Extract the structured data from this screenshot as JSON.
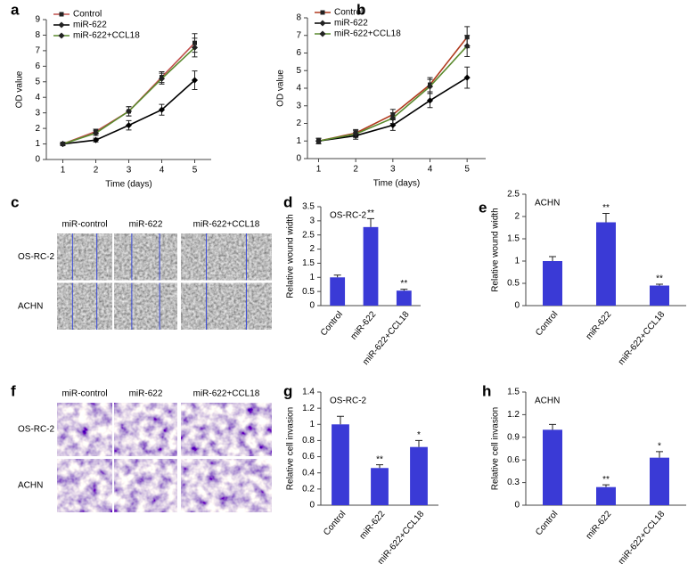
{
  "chart_data": [
    {
      "type": "line",
      "panel": "a",
      "x": [
        1,
        2,
        3,
        4,
        5
      ],
      "xlim": [
        0.5,
        5.5
      ],
      "xticks": [
        1,
        2,
        3,
        4,
        5
      ],
      "ylim": [
        0,
        9
      ],
      "yticks": [
        0,
        1,
        2,
        3,
        4,
        5,
        6,
        7,
        8,
        9
      ],
      "x_label": "Time (days)",
      "y_label": "OD value",
      "legend": "upper left",
      "series": [
        {
          "name": "Control",
          "color": "#c0504d",
          "values": [
            1,
            1.8,
            3.1,
            5.3,
            7.5
          ],
          "errors": [
            0.1,
            0.15,
            0.3,
            0.35,
            0.6
          ]
        },
        {
          "name": "miR-622",
          "color": "#000000",
          "values": [
            1,
            1.25,
            2.2,
            3.2,
            5.1
          ],
          "errors": [
            0.1,
            0.12,
            0.3,
            0.35,
            0.6
          ]
        },
        {
          "name": "miR-622+CCL18",
          "color": "#5a8a2e",
          "values": [
            1,
            1.7,
            3.1,
            5.2,
            7.2
          ],
          "errors": [
            0.1,
            0.15,
            0.3,
            0.35,
            0.6
          ]
        }
      ]
    },
    {
      "type": "line",
      "panel": "b",
      "x": [
        1,
        2,
        3,
        4,
        5
      ],
      "xlim": [
        0.7,
        5.5
      ],
      "xticks": [
        1,
        2,
        3,
        4,
        5
      ],
      "ylim": [
        0,
        8
      ],
      "yticks": [
        0,
        1,
        2,
        3,
        4,
        5,
        6,
        7,
        8
      ],
      "x_label": "Time (days)",
      "y_label": "OD value",
      "legend": "upper left",
      "series": [
        {
          "name": "Control",
          "color": "#b03a1e",
          "values": [
            1,
            1.45,
            2.5,
            4.2,
            6.9
          ],
          "errors": [
            0.15,
            0.2,
            0.3,
            0.4,
            0.6
          ]
        },
        {
          "name": "miR-622",
          "color": "#000000",
          "values": [
            1,
            1.3,
            1.9,
            3.3,
            4.6
          ],
          "errors": [
            0.15,
            0.2,
            0.3,
            0.4,
            0.6
          ]
        },
        {
          "name": "miR-622+CCL18",
          "color": "#5a8a2e",
          "values": [
            1,
            1.4,
            2.3,
            4.1,
            6.4
          ],
          "errors": [
            0.15,
            0.2,
            0.3,
            0.4,
            0.6
          ]
        }
      ]
    },
    {
      "type": "image-grid",
      "panel": "c",
      "columns": [
        "miR-control",
        "miR-622",
        "miR-622+CCL18"
      ],
      "rows": [
        "OS-RC-2",
        "ACHN"
      ]
    },
    {
      "type": "bar",
      "panel": "d",
      "title": "OS-RC-2",
      "y_label": "Relative wound width",
      "color": "#3a3ad6",
      "categories": [
        "Control",
        "miR-622",
        "miR-622+CCL18"
      ],
      "values": [
        1.0,
        2.78,
        0.53
      ],
      "errors": [
        0.08,
        0.3,
        0.05
      ],
      "annotations": [
        null,
        "**",
        "**"
      ],
      "ylim": [
        0,
        3.5
      ],
      "yticks": [
        0,
        0.5,
        1,
        1.5,
        2,
        2.5,
        3,
        3.5
      ]
    },
    {
      "type": "bar",
      "panel": "e",
      "title": "ACHN",
      "y_label": "Relative wound width",
      "color": "#3a3ad6",
      "categories": [
        "Control",
        "miR-622",
        "miR-622+CCL18"
      ],
      "values": [
        1.0,
        1.87,
        0.45
      ],
      "errors": [
        0.1,
        0.2,
        0.03
      ],
      "annotations": [
        null,
        "**",
        "**"
      ],
      "ylim": [
        0,
        2.5
      ],
      "yticks": [
        0,
        0.5,
        1,
        1.5,
        2,
        2.5
      ]
    },
    {
      "type": "image-grid",
      "panel": "f",
      "columns": [
        "miR-control",
        "miR-622",
        "miR-622+CCL18"
      ],
      "rows": [
        "OS-RC-2",
        "ACHN"
      ]
    },
    {
      "type": "bar",
      "panel": "g",
      "title": "OS-RC-2",
      "y_label": "Relative cell invasion",
      "color": "#3a3ad6",
      "categories": [
        "Control",
        "miR-622",
        "miR-622+CCL18"
      ],
      "values": [
        1.0,
        0.46,
        0.72
      ],
      "errors": [
        0.1,
        0.04,
        0.08
      ],
      "annotations": [
        null,
        "**",
        "*"
      ],
      "ylim": [
        0,
        1.4
      ],
      "yticks": [
        0,
        0.2,
        0.4,
        0.6,
        0.8,
        1,
        1.2,
        1.4
      ]
    },
    {
      "type": "bar",
      "panel": "h",
      "title": "ACHN",
      "y_label": "Relative  cell invasion",
      "color": "#3a3ad6",
      "categories": [
        "Control",
        "miR-622",
        "miR-622+CCL18"
      ],
      "values": [
        1.0,
        0.24,
        0.63
      ],
      "errors": [
        0.07,
        0.03,
        0.08
      ],
      "annotations": [
        null,
        "**",
        "*"
      ],
      "ylim": [
        0,
        1.5
      ],
      "yticks": [
        0,
        0.3,
        0.6,
        0.9,
        1.2,
        1.5
      ]
    }
  ]
}
